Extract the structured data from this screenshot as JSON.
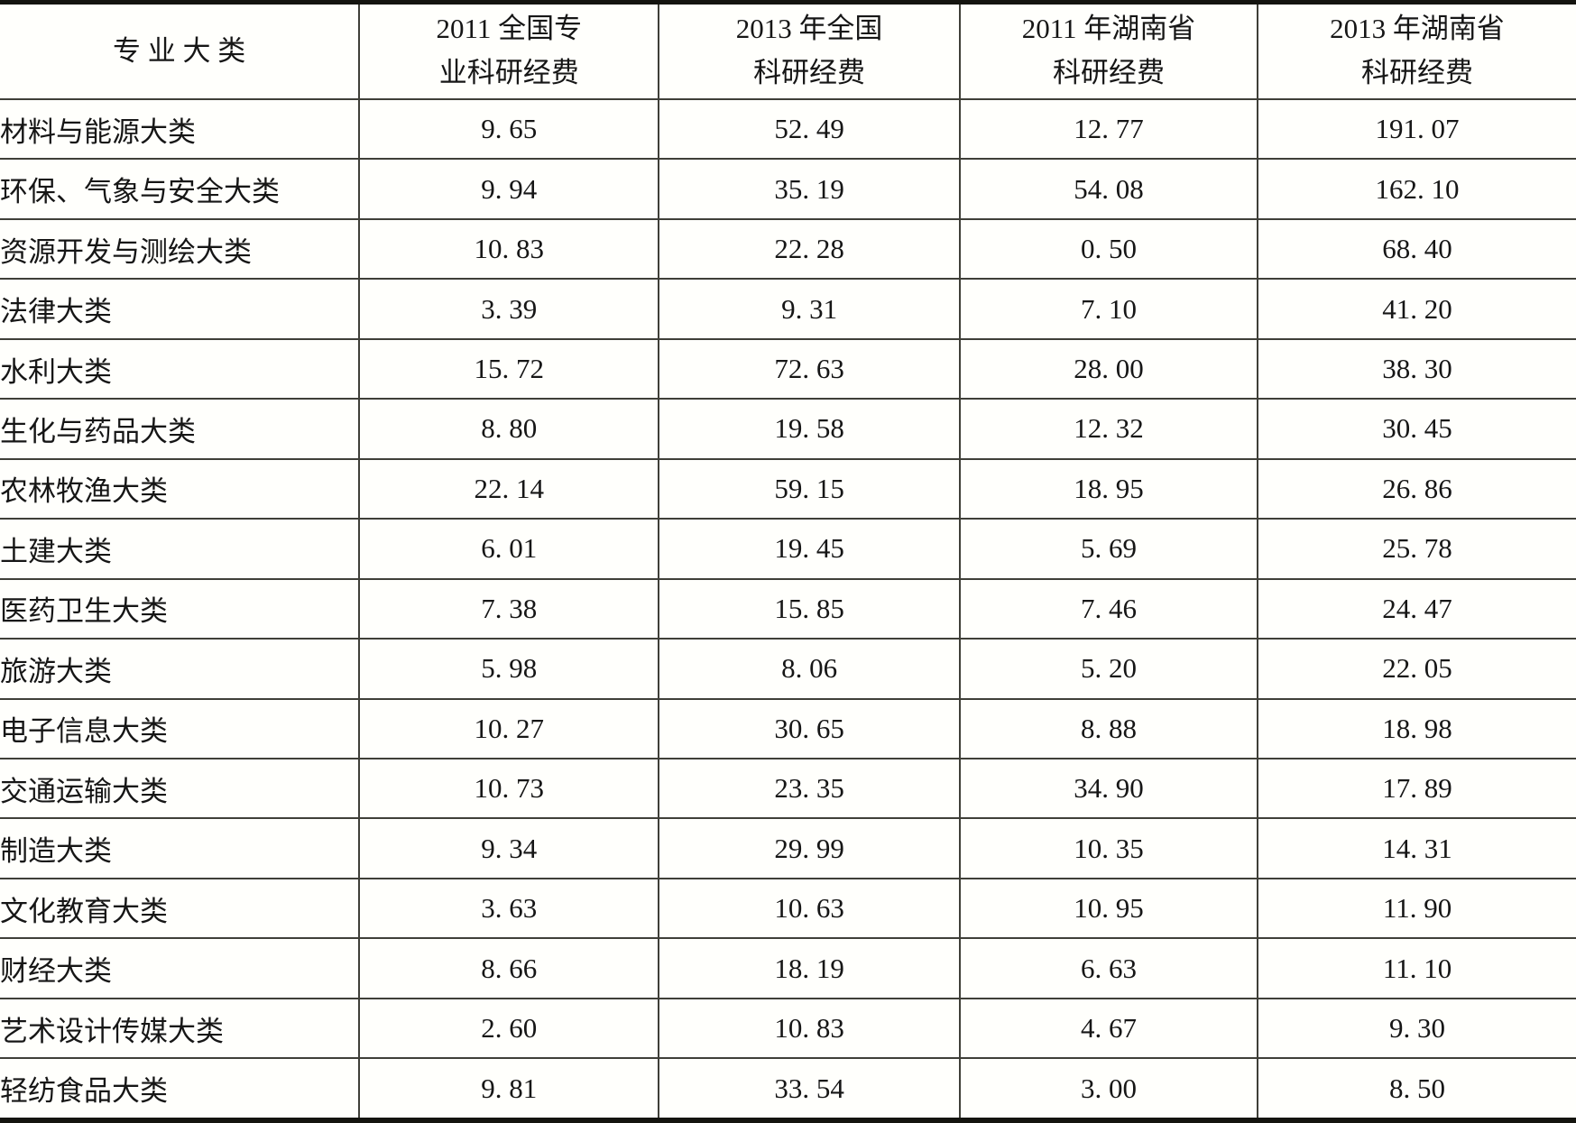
{
  "table": {
    "columns": [
      {
        "line1": "专 业 大 类",
        "line2": ""
      },
      {
        "line1": "2011 全国专",
        "line2": "业科研经费"
      },
      {
        "line1": "2013 年全国",
        "line2": "科研经费"
      },
      {
        "line1": "2011 年湖南省",
        "line2": "科研经费"
      },
      {
        "line1": "2013 年湖南省",
        "line2": "科研经费"
      }
    ],
    "rows": [
      {
        "category": "材料与能源大类",
        "values": [
          "9. 65",
          "52. 49",
          "12. 77",
          "191. 07"
        ]
      },
      {
        "category": "环保、气象与安全大类",
        "values": [
          "9. 94",
          "35. 19",
          "54. 08",
          "162. 10"
        ]
      },
      {
        "category": "资源开发与测绘大类",
        "values": [
          "10. 83",
          "22. 28",
          "0. 50",
          "68. 40"
        ]
      },
      {
        "category": "法律大类",
        "values": [
          "3. 39",
          "9. 31",
          "7. 10",
          "41. 20"
        ]
      },
      {
        "category": "水利大类",
        "values": [
          "15. 72",
          "72. 63",
          "28. 00",
          "38. 30"
        ]
      },
      {
        "category": "生化与药品大类",
        "values": [
          "8. 80",
          "19. 58",
          "12. 32",
          "30. 45"
        ]
      },
      {
        "category": "农林牧渔大类",
        "values": [
          "22. 14",
          "59. 15",
          "18. 95",
          "26. 86"
        ]
      },
      {
        "category": "土建大类",
        "values": [
          "6. 01",
          "19. 45",
          "5. 69",
          "25. 78"
        ]
      },
      {
        "category": "医药卫生大类",
        "values": [
          "7. 38",
          "15. 85",
          "7. 46",
          "24. 47"
        ]
      },
      {
        "category": "旅游大类",
        "values": [
          "5. 98",
          "8. 06",
          "5. 20",
          "22. 05"
        ]
      },
      {
        "category": "电子信息大类",
        "values": [
          "10. 27",
          "30. 65",
          "8. 88",
          "18. 98"
        ]
      },
      {
        "category": "交通运输大类",
        "values": [
          "10. 73",
          "23. 35",
          "34. 90",
          "17. 89"
        ]
      },
      {
        "category": "制造大类",
        "values": [
          "9. 34",
          "29. 99",
          "10. 35",
          "14. 31"
        ]
      },
      {
        "category": "文化教育大类",
        "values": [
          "3. 63",
          "10. 63",
          "10. 95",
          "11. 90"
        ]
      },
      {
        "category": "财经大类",
        "values": [
          "8. 66",
          "18. 19",
          "6. 63",
          "11. 10"
        ]
      },
      {
        "category": "艺术设计传媒大类",
        "values": [
          "2. 60",
          "10. 83",
          "4. 67",
          "9. 30"
        ]
      },
      {
        "category": "轻纺食品大类",
        "values": [
          "9. 81",
          "33. 54",
          "3. 00",
          "8. 50"
        ]
      }
    ]
  },
  "colors": {
    "background": "#fffffc",
    "text": "#161616",
    "grid_line": "#3f3f38",
    "outer_border": "#14140f"
  }
}
